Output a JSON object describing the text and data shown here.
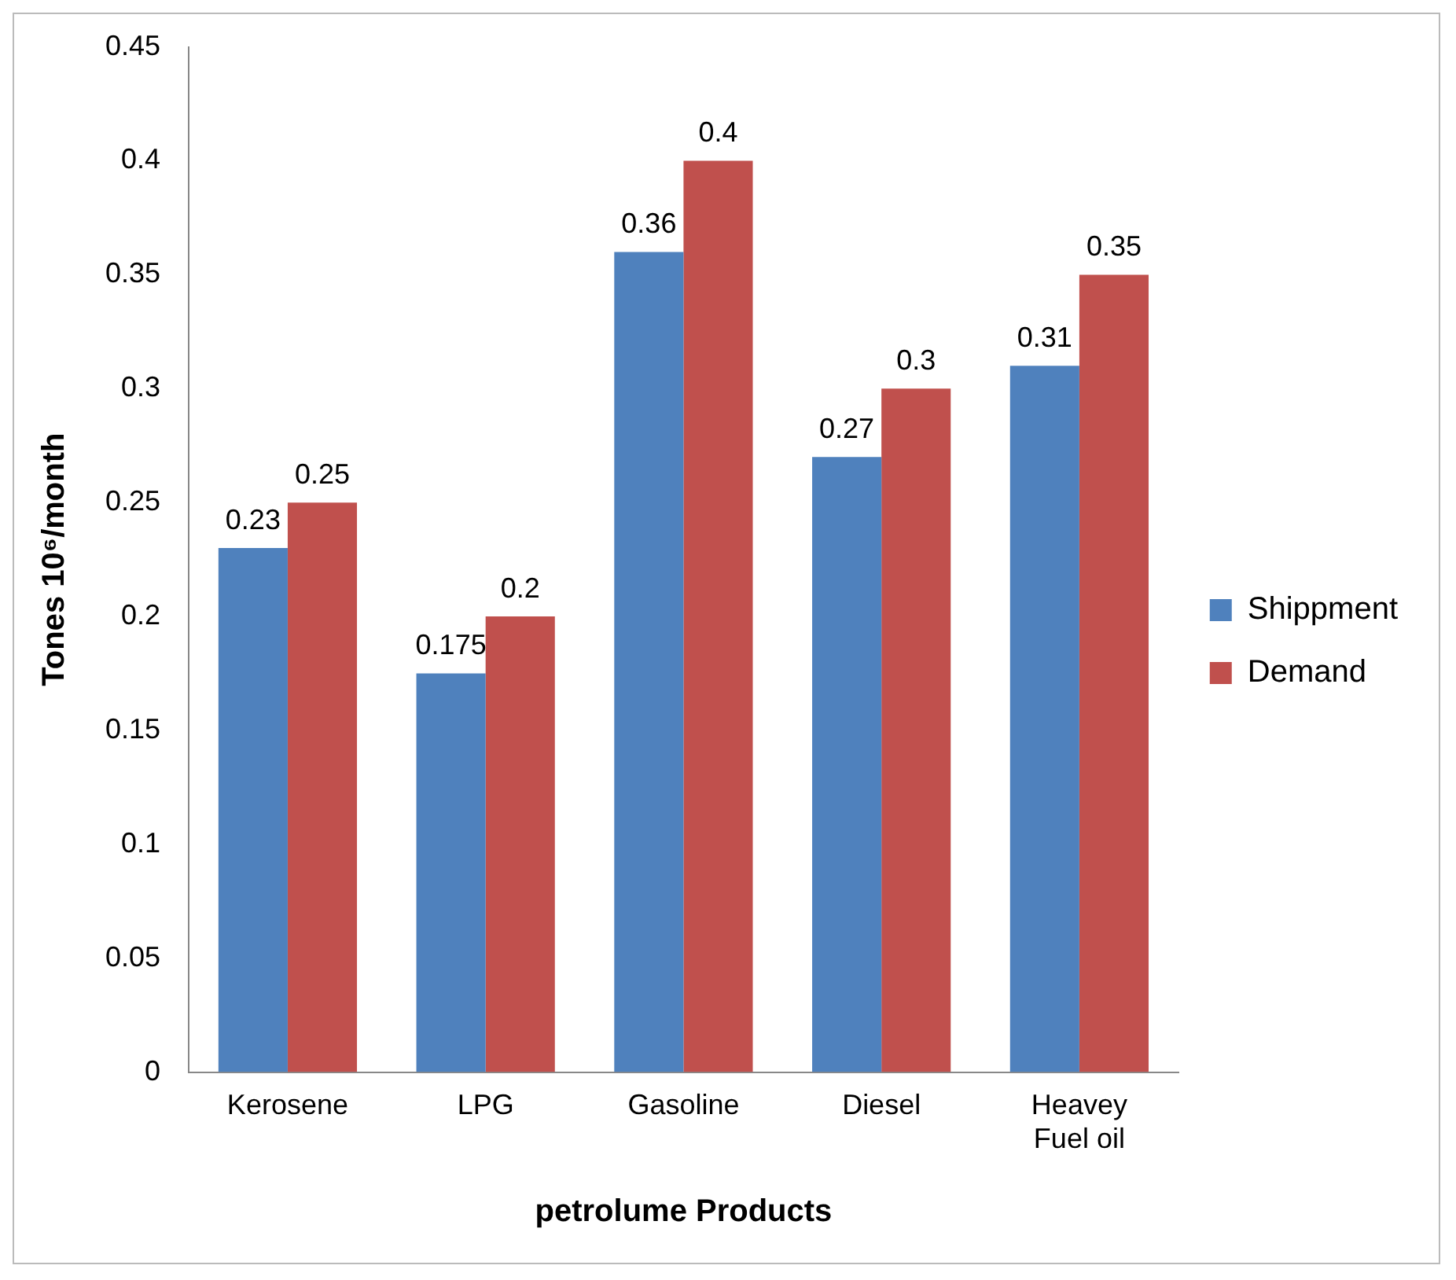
{
  "chart_data": {
    "type": "bar",
    "xlabel": "petrolume Products",
    "ylabel": "Tones 10⁶/month",
    "categories": [
      "Kerosene",
      "LPG",
      "Gasoline",
      "Diesel",
      "Heavey Fuel oil"
    ],
    "series": [
      {
        "name": "Shippment",
        "color": "#4f81bd",
        "values": [
          0.23,
          0.175,
          0.36,
          0.27,
          0.31
        ]
      },
      {
        "name": "Demand",
        "color": "#c0504d",
        "values": [
          0.25,
          0.2,
          0.4,
          0.3,
          0.35
        ]
      }
    ],
    "ylim": [
      0,
      0.45
    ],
    "yticks": [
      0,
      0.05,
      0.1,
      0.15,
      0.2,
      0.25,
      0.3,
      0.35,
      0.4,
      0.45
    ],
    "grid": false,
    "legend": "right",
    "data_labels": true
  }
}
